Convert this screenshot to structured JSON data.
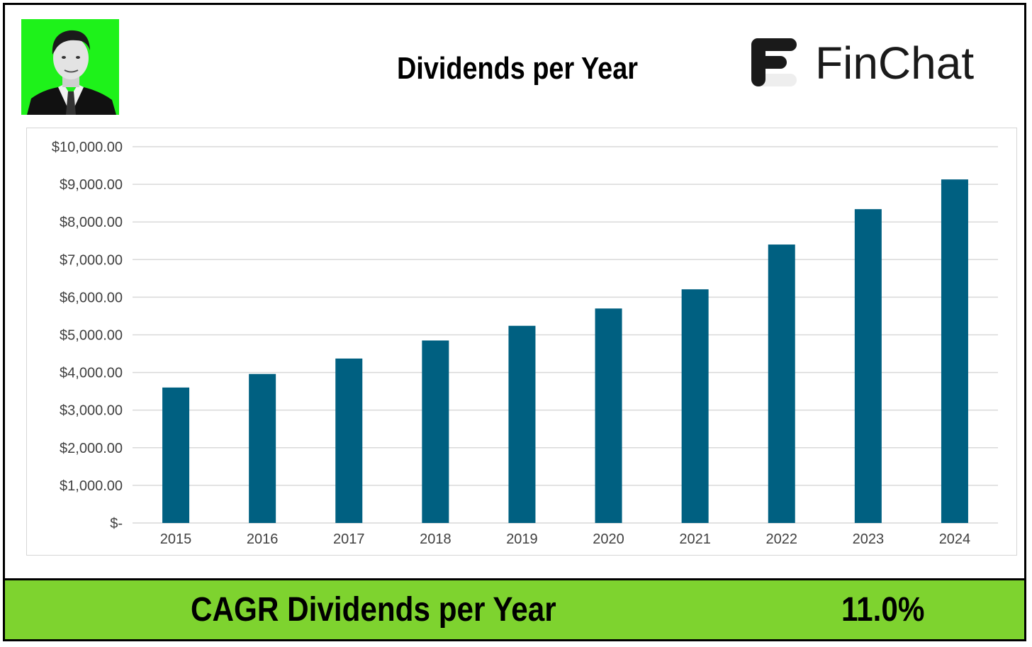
{
  "header": {
    "title": "Dividends per Year",
    "brand_name": "FinChat"
  },
  "footer": {
    "metric_label": "CAGR Dividends per Year",
    "metric_value": "11.0%"
  },
  "colors": {
    "bar": "#006081",
    "footer_bg": "#7ed32f",
    "avatar_bg": "#1ef21a",
    "gridline": "#d9d9d9"
  },
  "chart_data": {
    "type": "bar",
    "title": "Dividends per Year",
    "categories": [
      "2015",
      "2016",
      "2017",
      "2018",
      "2019",
      "2020",
      "2021",
      "2022",
      "2023",
      "2024"
    ],
    "values": [
      3600,
      3960,
      4370,
      4850,
      5240,
      5700,
      6210,
      7400,
      8340,
      9130
    ],
    "ylim": [
      0,
      10000
    ],
    "y_ticks": [
      0,
      1000,
      2000,
      3000,
      4000,
      5000,
      6000,
      7000,
      8000,
      9000,
      10000
    ],
    "y_tick_labels": [
      "$-",
      "$1,000.00",
      "$2,000.00",
      "$3,000.00",
      "$4,000.00",
      "$5,000.00",
      "$6,000.00",
      "$7,000.00",
      "$8,000.00",
      "$9,000.00",
      "$10,000.00"
    ],
    "xlabel": "",
    "ylabel": "",
    "grid": true,
    "legend": "none"
  }
}
